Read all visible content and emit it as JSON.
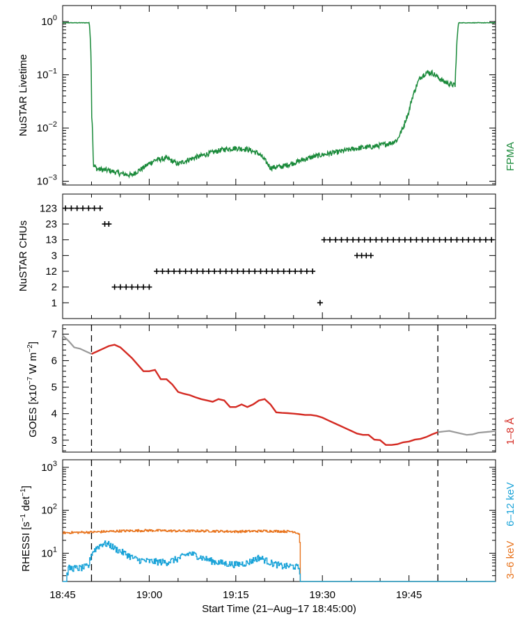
{
  "chart_data": [
    {
      "id": "livetime",
      "type": "line",
      "ylabel": "NuSTAR Livetime",
      "yscale": "log",
      "ylim": [
        0.00085,
        2.0
      ],
      "xlim": [
        0,
        75
      ],
      "yticks": [
        {
          "v": 1,
          "m": "10",
          "e": "0"
        },
        {
          "v": 0.1,
          "m": "10",
          "e": "−1"
        },
        {
          "v": 0.01,
          "m": "10",
          "e": "−2"
        },
        {
          "v": 0.001,
          "m": "10",
          "e": "−3"
        }
      ],
      "series": [
        {
          "name": "FPMA",
          "color": "#1a8a3a",
          "x": [
            0,
            4.6,
            5.0,
            5.3,
            6,
            8,
            10,
            12,
            14,
            16,
            18,
            20,
            22,
            24,
            26,
            28,
            30,
            32,
            34,
            35,
            36,
            38,
            40,
            42,
            44,
            46,
            48,
            50,
            52,
            54,
            56,
            57,
            58,
            59,
            60,
            61,
            62,
            63,
            64,
            65,
            66,
            67,
            68,
            68.2,
            68.6,
            70,
            75
          ],
          "y": [
            0.95,
            0.95,
            0.02,
            0.002,
            0.0017,
            0.0016,
            0.0014,
            0.0013,
            0.0018,
            0.0025,
            0.0027,
            0.0021,
            0.0026,
            0.003,
            0.0035,
            0.004,
            0.0042,
            0.004,
            0.0033,
            0.0025,
            0.0018,
            0.0019,
            0.0022,
            0.0026,
            0.003,
            0.0033,
            0.0036,
            0.004,
            0.0043,
            0.0045,
            0.005,
            0.0053,
            0.006,
            0.01,
            0.02,
            0.05,
            0.09,
            0.11,
            0.11,
            0.09,
            0.075,
            0.068,
            0.063,
            0.2,
            0.95,
            0.95,
            0.95
          ]
        }
      ]
    },
    {
      "id": "chus",
      "type": "scatter",
      "ylabel": "NuSTAR CHUs",
      "categories": [
        "1",
        "2",
        "12",
        "3",
        "13",
        "23",
        "123"
      ],
      "xlim": [
        0,
        75
      ],
      "series": [
        {
          "name": "CHU combination",
          "color": "#000000",
          "points": [
            [
              0.5,
              "123"
            ],
            [
              1.5,
              "123"
            ],
            [
              2.5,
              "123"
            ],
            [
              3.5,
              "123"
            ],
            [
              4.5,
              "123"
            ],
            [
              5.5,
              "123"
            ],
            [
              6.5,
              "123"
            ],
            [
              7.3,
              "23"
            ],
            [
              8.0,
              "23"
            ],
            [
              9.0,
              "2"
            ],
            [
              10.0,
              "2"
            ],
            [
              11.0,
              "2"
            ],
            [
              12.0,
              "2"
            ],
            [
              13.0,
              "2"
            ],
            [
              14.0,
              "2"
            ],
            [
              15.0,
              "2"
            ],
            [
              16.3,
              "12"
            ],
            [
              17.3,
              "12"
            ],
            [
              18.3,
              "12"
            ],
            [
              19.3,
              "12"
            ],
            [
              20.3,
              "12"
            ],
            [
              21.3,
              "12"
            ],
            [
              22.3,
              "12"
            ],
            [
              23.3,
              "12"
            ],
            [
              24.3,
              "12"
            ],
            [
              25.3,
              "12"
            ],
            [
              26.3,
              "12"
            ],
            [
              27.3,
              "12"
            ],
            [
              28.3,
              "12"
            ],
            [
              29.3,
              "12"
            ],
            [
              30.3,
              "12"
            ],
            [
              31.3,
              "12"
            ],
            [
              32.3,
              "12"
            ],
            [
              33.3,
              "12"
            ],
            [
              34.3,
              "12"
            ],
            [
              35.3,
              "12"
            ],
            [
              36.3,
              "12"
            ],
            [
              37.3,
              "12"
            ],
            [
              38.3,
              "12"
            ],
            [
              39.3,
              "12"
            ],
            [
              40.3,
              "12"
            ],
            [
              41.3,
              "12"
            ],
            [
              42.3,
              "12"
            ],
            [
              43.3,
              "12"
            ],
            [
              44.6,
              "1"
            ],
            [
              45.3,
              "13"
            ],
            [
              46.3,
              "13"
            ],
            [
              47.3,
              "13"
            ],
            [
              48.3,
              "13"
            ],
            [
              49.3,
              "13"
            ],
            [
              50.3,
              "13"
            ],
            [
              51.3,
              "13"
            ],
            [
              52.3,
              "13"
            ],
            [
              53.3,
              "13"
            ],
            [
              54.3,
              "13"
            ],
            [
              55.3,
              "13"
            ],
            [
              56.3,
              "13"
            ],
            [
              57.3,
              "13"
            ],
            [
              58.3,
              "13"
            ],
            [
              59.3,
              "13"
            ],
            [
              60.3,
              "13"
            ],
            [
              61.3,
              "13"
            ],
            [
              62.3,
              "13"
            ],
            [
              63.3,
              "13"
            ],
            [
              64.3,
              "13"
            ],
            [
              65.3,
              "13"
            ],
            [
              66.3,
              "13"
            ],
            [
              67.3,
              "13"
            ],
            [
              68.3,
              "13"
            ],
            [
              69.3,
              "13"
            ],
            [
              70.3,
              "13"
            ],
            [
              71.3,
              "13"
            ],
            [
              72.3,
              "13"
            ],
            [
              73.3,
              "13"
            ],
            [
              74.3,
              "13"
            ],
            [
              51.0,
              "3"
            ],
            [
              51.8,
              "3"
            ],
            [
              52.6,
              "3"
            ],
            [
              53.4,
              "3"
            ]
          ]
        }
      ]
    },
    {
      "id": "goes",
      "type": "line",
      "ylabel": "GOES [x10⁻⁷ W m⁻²]",
      "ylabel_parts": {
        "base": "GOES [x10",
        "exp1": "−7",
        "mid": " W m",
        "exp2": "−2",
        "end": "]"
      },
      "yscale": "linear",
      "ylim": [
        2.55,
        7.35
      ],
      "xlim": [
        0,
        75
      ],
      "yticks": [
        3,
        4,
        5,
        6,
        7
      ],
      "vlines": [
        5,
        65
      ],
      "series": [
        {
          "name": "1–8 Å",
          "color": "#d42a22",
          "x": [
            5,
            6,
            7,
            8,
            9,
            10,
            11,
            12,
            13,
            14,
            15,
            16,
            17,
            18,
            19,
            20,
            21,
            22,
            23,
            24,
            25,
            26,
            27,
            28,
            29,
            30,
            31,
            32,
            33,
            34,
            35,
            36,
            37,
            38,
            39,
            40,
            41,
            42,
            43,
            44,
            45,
            46,
            47,
            48,
            49,
            50,
            51,
            52,
            53,
            54,
            55,
            56,
            57,
            58,
            59,
            60,
            61,
            62,
            63,
            64,
            65
          ],
          "y": [
            6.25,
            6.35,
            6.45,
            6.55,
            6.6,
            6.5,
            6.3,
            6.1,
            5.85,
            5.6,
            5.6,
            5.65,
            5.3,
            5.3,
            5.1,
            4.82,
            4.75,
            4.7,
            4.62,
            4.55,
            4.5,
            4.45,
            4.55,
            4.5,
            4.25,
            4.25,
            4.35,
            4.25,
            4.35,
            4.5,
            4.55,
            4.35,
            4.05,
            4.03,
            4.02,
            4.0,
            3.98,
            3.95,
            3.95,
            3.92,
            3.85,
            3.75,
            3.65,
            3.55,
            3.45,
            3.35,
            3.25,
            3.2,
            3.2,
            3.02,
            3.0,
            2.82,
            2.82,
            2.85,
            2.92,
            2.95,
            3.02,
            3.05,
            3.12,
            3.22,
            3.3
          ]
        },
        {
          "name": "1–8 Å (outside interval)",
          "color": "#999999",
          "x": [
            0,
            1,
            2,
            3,
            4,
            5,
            65,
            66,
            67,
            68,
            69,
            70,
            71,
            72,
            73,
            74,
            75
          ],
          "y": [
            6.95,
            6.75,
            6.5,
            6.45,
            6.35,
            6.25,
            3.3,
            3.33,
            3.35,
            3.3,
            3.25,
            3.2,
            3.22,
            3.28,
            3.3,
            3.32,
            3.35
          ]
        }
      ]
    },
    {
      "id": "rhessi",
      "type": "line",
      "ylabel": "RHESSI [s⁻¹ det⁻¹]",
      "ylabel_parts": {
        "base": "RHESSI [s",
        "exp1": "−1",
        "mid": " det",
        "exp2": "−1",
        "end": "]"
      },
      "yscale": "log",
      "ylim": [
        2.2,
        1500
      ],
      "xlim": [
        0,
        75
      ],
      "yticks": [
        {
          "v": 1000,
          "m": "10",
          "e": "3"
        },
        {
          "v": 100,
          "m": "10",
          "e": "2"
        },
        {
          "v": 10,
          "m": "10",
          "e": "1"
        }
      ],
      "vlines": [
        5,
        65
      ],
      "series": [
        {
          "name": "3–6 keV",
          "color": "#e8731c",
          "x": [
            0,
            5,
            10,
            15,
            20,
            25,
            30,
            35,
            40,
            41,
            41.1,
            75
          ],
          "y": [
            30,
            31,
            33,
            34,
            33,
            33,
            32,
            33,
            32,
            28,
            2.0,
            2.0
          ]
        },
        {
          "name": "6–12 keV",
          "color": "#1aa3d8",
          "x": [
            0,
            0.5,
            1,
            3,
            4.5,
            5,
            5.5,
            6,
            7,
            8,
            9,
            10,
            11,
            12,
            13,
            15,
            18,
            20,
            22,
            24,
            26,
            28,
            30,
            32,
            34,
            36,
            38,
            40,
            41,
            41.1,
            75
          ],
          "y": [
            2.0,
            2.0,
            4.5,
            4.5,
            5.0,
            10,
            12,
            14,
            17,
            16,
            13,
            11,
            9.5,
            8,
            7,
            6.5,
            6.2,
            7.5,
            10,
            8,
            6.5,
            5.8,
            5.5,
            6,
            8,
            6,
            5,
            5,
            4.5,
            2.0,
            2.0
          ]
        }
      ]
    }
  ],
  "xaxis": {
    "label": "Start Time (21–Aug–17 18:45:00)",
    "ticks": [
      {
        "v": 0,
        "label": "18:45"
      },
      {
        "v": 15,
        "label": "19:00"
      },
      {
        "v": 30,
        "label": "19:15"
      },
      {
        "v": 45,
        "label": "19:30"
      },
      {
        "v": 60,
        "label": "19:45"
      }
    ]
  },
  "legends": {
    "fpma": "FPMA",
    "goes": "1–8 Å",
    "rhessi_hi": "6–12 keV",
    "rhessi_lo": "3–6 keV"
  },
  "colors": {
    "fpma": "#1a8a3a",
    "goes": "#d42a22",
    "goes_out": "#999999",
    "rhessi_lo": "#e8731c",
    "rhessi_hi": "#1aa3d8"
  }
}
